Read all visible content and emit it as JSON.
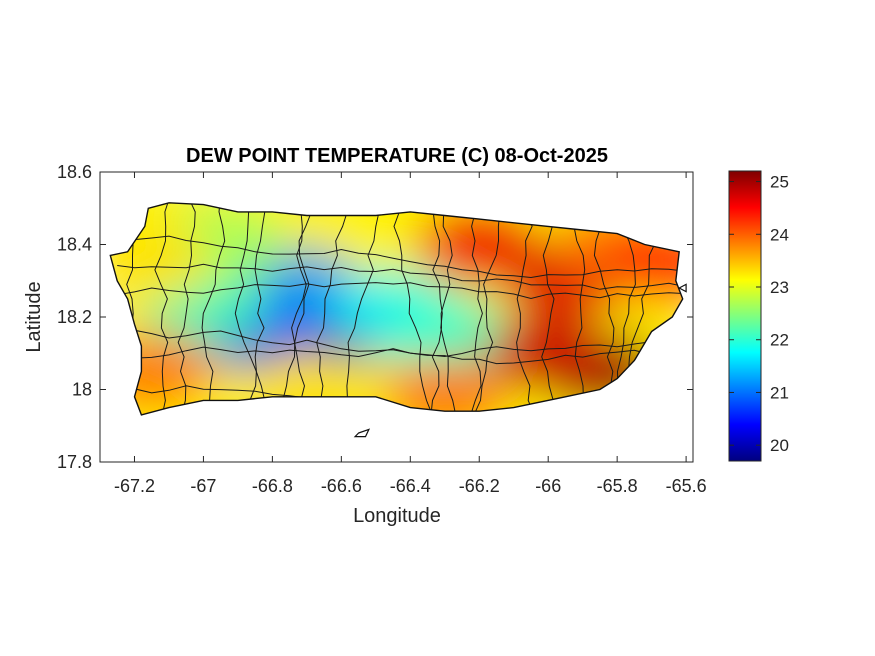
{
  "chart_data": {
    "type": "heatmap",
    "title": "DEW POINT TEMPERATURE (C) 08-Oct-2025",
    "xlabel": "Longitude",
    "ylabel": "Latitude",
    "xlim": [
      -67.3,
      -65.58
    ],
    "ylim": [
      17.8,
      18.6
    ],
    "x_ticks": [
      -67.2,
      -67,
      -66.8,
      -66.6,
      -66.4,
      -66.2,
      -66,
      -65.8,
      -65.6
    ],
    "x_tick_labels": [
      "-67.2",
      "-67",
      "-66.8",
      "-66.6",
      "-66.4",
      "-66.2",
      "-66",
      "-65.8",
      "-65.6"
    ],
    "y_ticks": [
      17.8,
      18,
      18.2,
      18.4,
      18.6
    ],
    "y_tick_labels": [
      "17.8",
      "18",
      "18.2",
      "18.4",
      "18.6"
    ],
    "colorbar": {
      "colormap": "jet",
      "range": [
        19.7,
        25.2
      ],
      "ticks": [
        20,
        21,
        22,
        23,
        24,
        25
      ],
      "tick_labels": [
        "20",
        "21",
        "22",
        "23",
        "24",
        "25"
      ]
    },
    "grid": false,
    "field_hotspots": [
      {
        "lon": -66.6,
        "lat": 18.18,
        "value": 20.0
      },
      {
        "lon": -66.84,
        "lat": 18.16,
        "value": 20.4
      },
      {
        "lon": -66.72,
        "lat": 18.28,
        "value": 21.2
      },
      {
        "lon": -66.45,
        "lat": 18.22,
        "value": 21.8
      },
      {
        "lon": -66.3,
        "lat": 18.15,
        "value": 22.0
      },
      {
        "lon": -67.0,
        "lat": 18.22,
        "value": 22.1
      },
      {
        "lon": -66.95,
        "lat": 18.4,
        "value": 22.6
      },
      {
        "lon": -67.15,
        "lat": 18.35,
        "value": 23.3
      },
      {
        "lon": -67.15,
        "lat": 18.05,
        "value": 23.9
      },
      {
        "lon": -66.7,
        "lat": 18.0,
        "value": 23.3
      },
      {
        "lon": -66.3,
        "lat": 17.98,
        "value": 23.9
      },
      {
        "lon": -66.2,
        "lat": 18.4,
        "value": 24.6
      },
      {
        "lon": -65.95,
        "lat": 18.3,
        "value": 24.7
      },
      {
        "lon": -65.85,
        "lat": 18.05,
        "value": 25.1
      },
      {
        "lon": -65.8,
        "lat": 18.4,
        "value": 23.9
      },
      {
        "lon": -65.65,
        "lat": 18.35,
        "value": 24.3
      },
      {
        "lon": -66.0,
        "lat": 18.1,
        "value": 24.8
      }
    ],
    "island_outline": [
      [
        -67.27,
        18.37
      ],
      [
        -67.22,
        18.38
      ],
      [
        -67.17,
        18.45
      ],
      [
        -67.16,
        18.5
      ],
      [
        -67.1,
        18.515
      ],
      [
        -67.0,
        18.51
      ],
      [
        -66.9,
        18.49
      ],
      [
        -66.8,
        18.49
      ],
      [
        -66.7,
        18.48
      ],
      [
        -66.6,
        18.48
      ],
      [
        -66.5,
        18.48
      ],
      [
        -66.4,
        18.49
      ],
      [
        -66.3,
        18.48
      ],
      [
        -66.2,
        18.47
      ],
      [
        -66.1,
        18.46
      ],
      [
        -66.0,
        18.45
      ],
      [
        -65.9,
        18.44
      ],
      [
        -65.8,
        18.43
      ],
      [
        -65.72,
        18.4
      ],
      [
        -65.62,
        18.38
      ],
      [
        -65.63,
        18.3
      ],
      [
        -65.61,
        18.25
      ],
      [
        -65.64,
        18.2
      ],
      [
        -65.7,
        18.16
      ],
      [
        -65.75,
        18.08
      ],
      [
        -65.8,
        18.03
      ],
      [
        -65.85,
        18.0
      ],
      [
        -65.95,
        17.98
      ],
      [
        -66.1,
        17.95
      ],
      [
        -66.2,
        17.94
      ],
      [
        -66.3,
        17.94
      ],
      [
        -66.4,
        17.95
      ],
      [
        -66.5,
        17.98
      ],
      [
        -66.6,
        17.98
      ],
      [
        -66.7,
        17.98
      ],
      [
        -66.8,
        17.98
      ],
      [
        -66.9,
        17.97
      ],
      [
        -67.0,
        17.97
      ],
      [
        -67.1,
        17.95
      ],
      [
        -67.18,
        17.93
      ],
      [
        -67.2,
        17.98
      ],
      [
        -67.18,
        18.05
      ],
      [
        -67.18,
        18.12
      ],
      [
        -67.2,
        18.18
      ],
      [
        -67.22,
        18.25
      ],
      [
        -67.25,
        18.3
      ]
    ],
    "offshore_islets": [
      [
        [
          -66.55,
          17.88
        ],
        [
          -66.52,
          17.89
        ],
        [
          -66.53,
          17.87
        ],
        [
          -66.56,
          17.87
        ]
      ],
      [
        [
          -65.62,
          18.28
        ],
        [
          -65.6,
          18.29
        ],
        [
          -65.6,
          18.27
        ]
      ]
    ]
  }
}
